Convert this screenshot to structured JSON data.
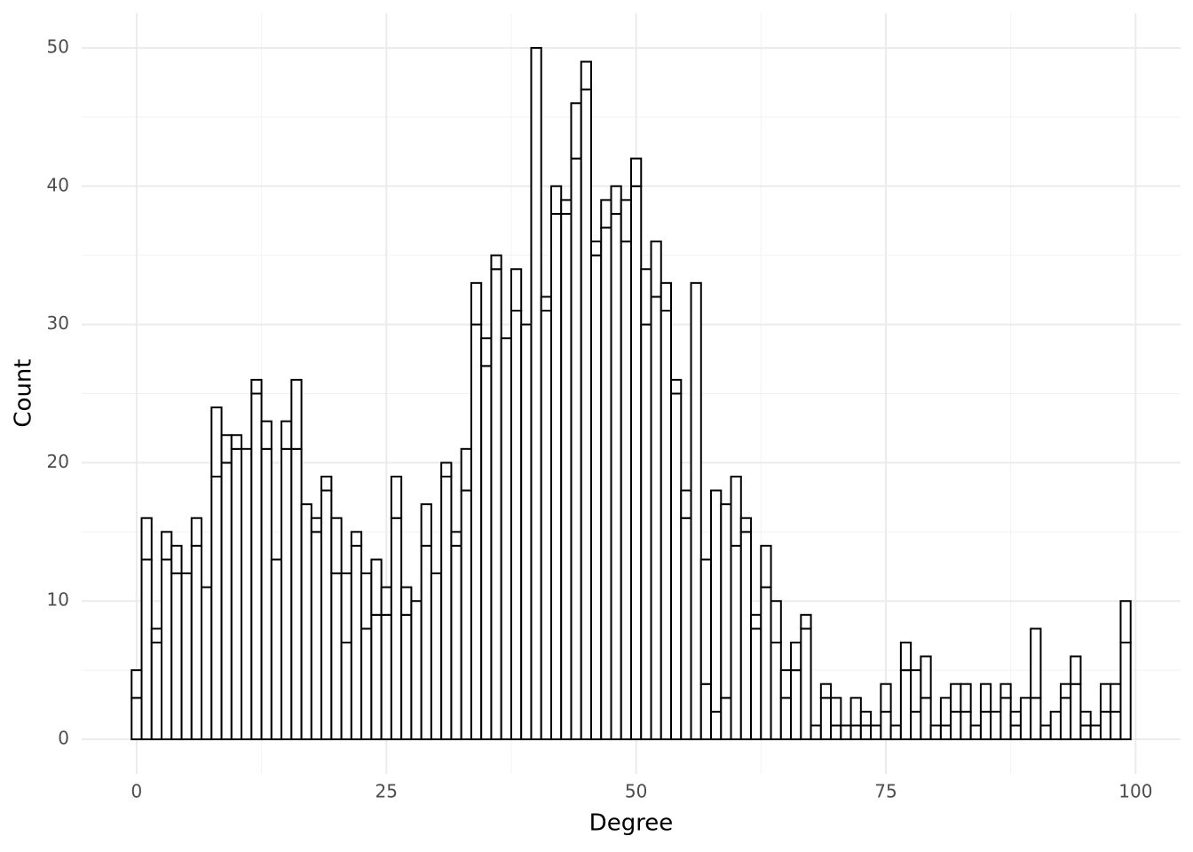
{
  "chart_data": {
    "type": "histogram",
    "x_label": "Degree",
    "y_label": "Count",
    "bins": [
      -0.5,
      0.5,
      1.5,
      2.5,
      3.5,
      4.5,
      5.5,
      6.5,
      7.5,
      8.5,
      9.5,
      10.5,
      11.5,
      12.5,
      13.5,
      14.5,
      15.5,
      16.5,
      17.5,
      18.5,
      19.5,
      20.5,
      21.5,
      22.5,
      23.5,
      24.5,
      25.5,
      26.5,
      27.5,
      28.5,
      29.5,
      30.5,
      31.5,
      32.5,
      33.5,
      34.5,
      35.5,
      36.5,
      37.5,
      38.5,
      39.5,
      40.5,
      41.5,
      42.5,
      43.5,
      44.5,
      45.5,
      46.5,
      47.5,
      48.5,
      49.5,
      50.5,
      51.5,
      52.5,
      53.5,
      54.5,
      55.5,
      56.5,
      57.5,
      58.5,
      59.5,
      60.5,
      61.5,
      62.5,
      63.5,
      64.5,
      65.5,
      66.5,
      67.5,
      68.5,
      69.5,
      70.5,
      71.5,
      72.5,
      73.5,
      74.5,
      75.5,
      76.5,
      77.5,
      78.5,
      79.5,
      80.5,
      81.5,
      82.5,
      83.5,
      84.5,
      85.5,
      86.5,
      87.5,
      88.5,
      89.5,
      90.5,
      91.5,
      92.5,
      93.5,
      94.5,
      95.5,
      96.5,
      97.5,
      98.5,
      99.5
    ],
    "series": [
      {
        "color": "#ffffff",
        "values": [
          3,
          13,
          7,
          13,
          12,
          12,
          14,
          11,
          19,
          20,
          21,
          21,
          25,
          21,
          13,
          21,
          21,
          17,
          15,
          18,
          12,
          7,
          14,
          8,
          9,
          9,
          16,
          9,
          10,
          14,
          12,
          19,
          14,
          18,
          30,
          27,
          34,
          29,
          31,
          30,
          50,
          31,
          38,
          38,
          42,
          47,
          35,
          37,
          38,
          36,
          40,
          30,
          32,
          31,
          25,
          16,
          33,
          4,
          2,
          3,
          14,
          15,
          8,
          11,
          7,
          3,
          5,
          8,
          1,
          3,
          1,
          1,
          1,
          1,
          1,
          2,
          1,
          5,
          2,
          3,
          1,
          1,
          2,
          2,
          1,
          2,
          2,
          3,
          1,
          3,
          3,
          1,
          2,
          3,
          4,
          1,
          1,
          2,
          2,
          7
        ]
      },
      {
        "color": "#ffffff",
        "values": [
          2,
          3,
          1,
          2,
          2,
          0,
          2,
          0,
          5,
          2,
          1,
          0,
          1,
          2,
          0,
          2,
          5,
          0,
          1,
          1,
          4,
          5,
          1,
          4,
          4,
          2,
          3,
          2,
          0,
          3,
          0,
          1,
          1,
          3,
          3,
          2,
          1,
          0,
          3,
          0,
          0,
          1,
          2,
          1,
          4,
          2,
          1,
          2,
          2,
          3,
          2,
          4,
          4,
          2,
          1,
          2,
          0,
          9,
          16,
          14,
          5,
          1,
          1,
          3,
          3,
          2,
          2,
          1,
          0,
          1,
          2,
          0,
          2,
          1,
          0,
          2,
          0,
          2,
          3,
          3,
          0,
          2,
          2,
          2,
          0,
          2,
          0,
          1,
          1,
          0,
          5,
          0,
          0,
          1,
          2,
          1,
          0,
          2,
          2,
          3
        ]
      }
    ],
    "outline": "#000000",
    "xlim": [
      -5.5,
      104.5
    ],
    "xticks": [
      0,
      25,
      50,
      75,
      100
    ],
    "ylim": [
      -2.5,
      52.5
    ],
    "yticks": [
      0,
      10,
      20,
      30,
      40,
      50
    ],
    "x_minor_grid": [
      12.5,
      37.5,
      62.5,
      87.5
    ],
    "y_minor_grid": [
      5,
      15,
      25,
      35,
      45
    ],
    "grid": true
  }
}
